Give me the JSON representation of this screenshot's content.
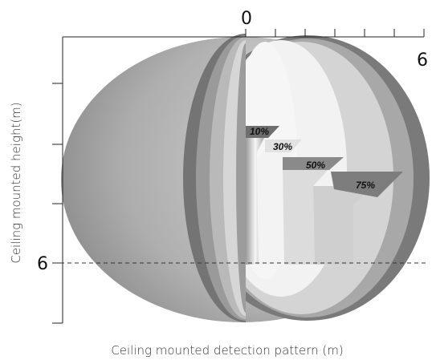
{
  "axes": {
    "top_zero_label": "0",
    "top_max_label": "6",
    "left_mark_label": "6",
    "x_title": "Ceiling mounted detection pattern (m)",
    "y_title": "Ceiling mounted height(m)"
  },
  "zones": [
    {
      "label": "10%",
      "fill": "#6e6e6e"
    },
    {
      "label": "30%",
      "fill": "#e2e2e2"
    },
    {
      "label": "50%",
      "fill": "#8a8a8a"
    },
    {
      "label": "75%",
      "fill": "#7d7d7d"
    }
  ],
  "colors": {
    "outer_shell": "#bdbdbd",
    "dark_ring": "#7a7a7a",
    "mid_ring": "#a8a8a8",
    "inner_ring": "#d4d4d4",
    "core": "#f2f2f2",
    "reference_line": "#333333"
  }
}
